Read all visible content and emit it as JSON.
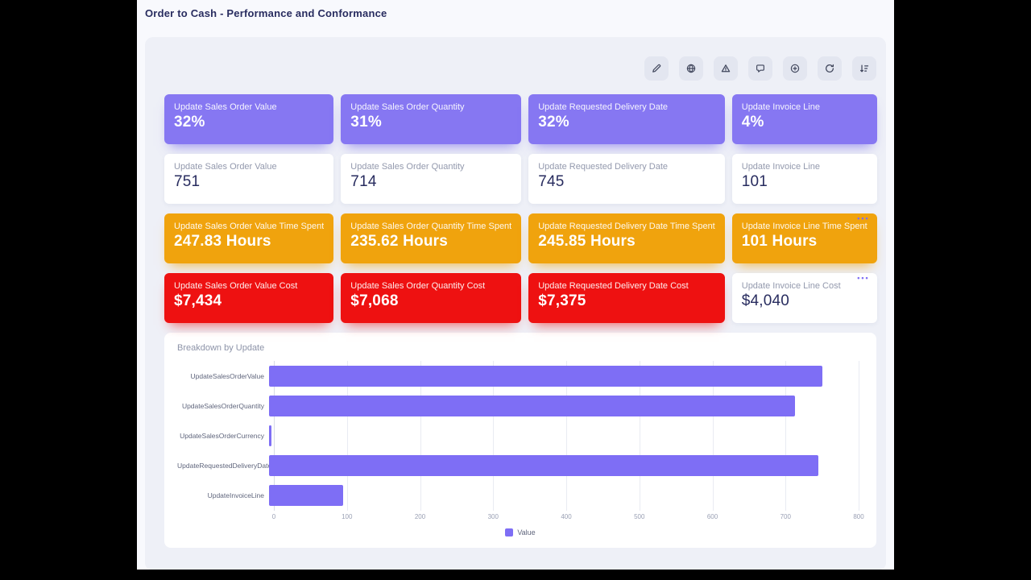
{
  "page": {
    "title": "Order to Cash - Performance and Conformance"
  },
  "toolbar": {
    "buttons": [
      "edit",
      "globe",
      "warning",
      "comment",
      "add",
      "refresh",
      "sort"
    ]
  },
  "icons": {
    "ellipsis": "•••"
  },
  "kpi_rows": [
    {
      "variant": "purple",
      "cards": [
        {
          "label": "Update Sales Order Value",
          "value": "32%",
          "variant": "purple"
        },
        {
          "label": "Update Sales Order Quantity",
          "value": "31%",
          "variant": "purple"
        },
        {
          "label": "Update Requested Delivery Date",
          "value": "32%",
          "variant": "purple"
        },
        {
          "label": "Update Invoice Line",
          "value": "4%",
          "variant": "purple"
        }
      ]
    },
    {
      "variant": "white",
      "cards": [
        {
          "label": "Update Sales Order Value",
          "value": "751",
          "variant": "white"
        },
        {
          "label": "Update Sales Order Quantity",
          "value": "714",
          "variant": "white"
        },
        {
          "label": "Update Requested Delivery Date",
          "value": "745",
          "variant": "white"
        },
        {
          "label": "Update Invoice Line",
          "value": "101",
          "variant": "white"
        }
      ]
    },
    {
      "variant": "orange",
      "cards": [
        {
          "label": "Update Sales Order Value Time Spent",
          "value": "247.83 Hours",
          "variant": "orange"
        },
        {
          "label": "Update Sales Order Quantity Time Spent",
          "value": "235.62 Hours",
          "variant": "orange"
        },
        {
          "label": "Update Requested Delivery Date Time Spent",
          "value": "245.85 Hours",
          "variant": "orange"
        },
        {
          "label": "Update Invoice Line Time Spent",
          "value": "101 Hours",
          "variant": "orange",
          "menu": true
        }
      ]
    },
    {
      "variant": "red",
      "cards": [
        {
          "label": "Update Sales Order Value Cost",
          "value": "$7,434",
          "variant": "red"
        },
        {
          "label": "Update Sales Order Quantity Cost",
          "value": "$7,068",
          "variant": "red"
        },
        {
          "label": "Update Requested Delivery Date Cost",
          "value": "$7,375",
          "variant": "red"
        },
        {
          "label": "Update Invoice Line Cost",
          "value": "$4,040",
          "variant": "white",
          "menu": true
        }
      ]
    }
  ],
  "chart_data": {
    "type": "bar",
    "orientation": "horizontal",
    "title": "Breakdown by Update",
    "categories": [
      "UpdateSalesOrderValue",
      "UpdateSalesOrderQuantity",
      "UpdateSalesOrderCurrency",
      "UpdateRequestedDeliveryDate",
      "UpdateInvoiceLine"
    ],
    "values": [
      751,
      714,
      3,
      745,
      101
    ],
    "xlim": [
      0,
      800
    ],
    "xticks": [
      0,
      100,
      200,
      300,
      400,
      500,
      600,
      700,
      800
    ],
    "bar_color": "#7e6ef5",
    "legend_label": "Value",
    "legend_position": "bottom",
    "grid": true
  },
  "colors": {
    "accent-purple": "#8677f2",
    "accent-orange": "#f0a30d",
    "accent-red": "#ee1111",
    "navy": "#282c5f",
    "muted": "#9399ad",
    "panel": "#eef0f7",
    "surface": "#f8f9fd",
    "bar": "#7e6ef5",
    "tool-bg": "#e3e6f0",
    "tool-icon": "#3e445a"
  }
}
